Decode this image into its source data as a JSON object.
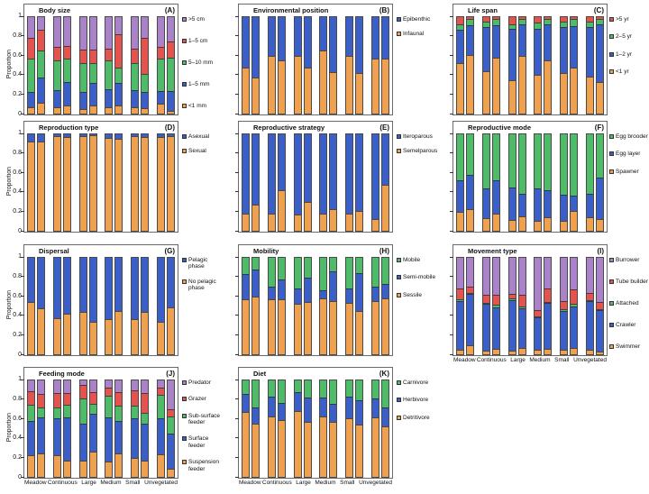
{
  "figure": {
    "ylabel": "Proportion",
    "y_ticks": [
      "0",
      "0.2",
      "0.4",
      "0.6",
      "0.8",
      "1"
    ],
    "ylim": [
      0,
      1
    ],
    "bars_per_category": 2,
    "bar_order_note": "two bars per habitat category, left to right",
    "categories": [
      "Meadow",
      "Continuous",
      "Large",
      "Medium",
      "Small",
      "Unvegetated"
    ],
    "colors": {
      "orange": "#F0A14F",
      "blue": "#3A5FC8",
      "green": "#4EBB69",
      "red": "#E4534E",
      "purple": "#A982C9"
    }
  },
  "chart_data": [
    {
      "type": "bar",
      "stacked": true,
      "letter": "(A)",
      "title": "Body size",
      "row": 0,
      "col": 0,
      "legend_top_to_bottom": [
        {
          "label": ">5 cm",
          "color": "purple"
        },
        {
          "label": "1–5 cm",
          "color": "red"
        },
        {
          "label": "5–10 mm",
          "color": "green"
        },
        {
          "label": "1–5 mm",
          "color": "blue"
        },
        {
          "label": "<1 mm",
          "color": "orange"
        }
      ],
      "segments_bottom_to_top": [
        {
          "name": "<1 mm",
          "color": "orange"
        },
        {
          "name": "1–5 mm",
          "color": "blue"
        },
        {
          "name": "5–10 mm",
          "color": "green"
        },
        {
          "name": "1–5 cm",
          "color": "red"
        },
        {
          "name": ">5 cm",
          "color": "purple"
        }
      ],
      "values": [
        [
          0.07,
          0.15,
          0.35,
          0.22,
          0.21
        ],
        [
          0.11,
          0.26,
          0.28,
          0.22,
          0.13
        ],
        [
          0.07,
          0.17,
          0.31,
          0.14,
          0.31
        ],
        [
          0.08,
          0.25,
          0.24,
          0.13,
          0.3
        ],
        [
          0.05,
          0.17,
          0.3,
          0.14,
          0.34
        ],
        [
          0.08,
          0.24,
          0.2,
          0.14,
          0.34
        ],
        [
          0.07,
          0.18,
          0.3,
          0.12,
          0.33
        ],
        [
          0.08,
          0.24,
          0.16,
          0.34,
          0.18
        ],
        [
          0.07,
          0.17,
          0.28,
          0.15,
          0.33
        ],
        [
          0.06,
          0.16,
          0.19,
          0.38,
          0.21
        ],
        [
          0.1,
          0.13,
          0.34,
          0.12,
          0.31
        ],
        [
          0.03,
          0.2,
          0.35,
          0.17,
          0.25
        ]
      ],
      "show_category_labels": false
    },
    {
      "type": "bar",
      "stacked": true,
      "letter": "(B)",
      "title": "Environmental position",
      "row": 0,
      "col": 1,
      "legend_top_to_bottom": [
        {
          "label": "Epibenthic",
          "color": "blue"
        },
        {
          "label": "Infaunal",
          "color": "orange"
        }
      ],
      "segments_bottom_to_top": [
        {
          "name": "Infaunal",
          "color": "orange"
        },
        {
          "name": "Epibenthic",
          "color": "blue"
        }
      ],
      "values": [
        [
          0.48,
          0.52
        ],
        [
          0.37,
          0.63
        ],
        [
          0.6,
          0.4
        ],
        [
          0.55,
          0.45
        ],
        [
          0.6,
          0.4
        ],
        [
          0.48,
          0.52
        ],
        [
          0.65,
          0.35
        ],
        [
          0.43,
          0.57
        ],
        [
          0.6,
          0.4
        ],
        [
          0.42,
          0.58
        ],
        [
          0.57,
          0.43
        ],
        [
          0.57,
          0.43
        ]
      ],
      "show_category_labels": false
    },
    {
      "type": "bar",
      "stacked": true,
      "letter": "(C)",
      "title": "Life span",
      "row": 0,
      "col": 2,
      "legend_top_to_bottom": [
        {
          "label": ">5 yr",
          "color": "red"
        },
        {
          "label": "2–5 yr",
          "color": "green"
        },
        {
          "label": "1–2 yr",
          "color": "blue"
        },
        {
          "label": "<1 yr",
          "color": "orange"
        }
      ],
      "segments_bottom_to_top": [
        {
          "name": "<1 yr",
          "color": "orange"
        },
        {
          "name": "1–2 yr",
          "color": "blue"
        },
        {
          "name": "2–5 yr",
          "color": "green"
        },
        {
          "name": ">5 yr",
          "color": "red"
        }
      ],
      "values": [
        [
          0.52,
          0.35,
          0.06,
          0.07
        ],
        [
          0.61,
          0.31,
          0.06,
          0.02
        ],
        [
          0.44,
          0.46,
          0.05,
          0.05
        ],
        [
          0.58,
          0.34,
          0.06,
          0.02
        ],
        [
          0.35,
          0.53,
          0.05,
          0.07
        ],
        [
          0.6,
          0.33,
          0.05,
          0.02
        ],
        [
          0.4,
          0.48,
          0.06,
          0.06
        ],
        [
          0.55,
          0.38,
          0.05,
          0.02
        ],
        [
          0.42,
          0.48,
          0.05,
          0.05
        ],
        [
          0.48,
          0.43,
          0.07,
          0.02
        ],
        [
          0.38,
          0.52,
          0.05,
          0.05
        ],
        [
          0.33,
          0.6,
          0.05,
          0.02
        ]
      ],
      "show_category_labels": false
    },
    {
      "type": "bar",
      "stacked": true,
      "letter": "(D)",
      "title": "Reproduction type",
      "row": 1,
      "col": 0,
      "legend_top_to_bottom": [
        {
          "label": "Asexual",
          "color": "blue"
        },
        {
          "label": "Sexual",
          "color": "orange"
        }
      ],
      "segments_bottom_to_top": [
        {
          "name": "Sexual",
          "color": "orange"
        },
        {
          "name": "Asexual",
          "color": "blue"
        }
      ],
      "values": [
        [
          0.93,
          0.07
        ],
        [
          0.93,
          0.07
        ],
        [
          0.98,
          0.02
        ],
        [
          0.97,
          0.03
        ],
        [
          0.98,
          0.02
        ],
        [
          0.99,
          0.01
        ],
        [
          0.96,
          0.04
        ],
        [
          0.95,
          0.05
        ],
        [
          0.98,
          0.02
        ],
        [
          0.97,
          0.03
        ],
        [
          0.97,
          0.03
        ],
        [
          0.98,
          0.02
        ]
      ],
      "show_category_labels": false
    },
    {
      "type": "bar",
      "stacked": true,
      "letter": "(E)",
      "title": "Reproductive strategy",
      "row": 1,
      "col": 1,
      "legend_top_to_bottom": [
        {
          "label": "Iteroparous",
          "color": "blue"
        },
        {
          "label": "Semelparous",
          "color": "orange"
        }
      ],
      "segments_bottom_to_top": [
        {
          "name": "Semelparous",
          "color": "orange"
        },
        {
          "name": "Iteroparous",
          "color": "blue"
        }
      ],
      "values": [
        [
          0.18,
          0.82
        ],
        [
          0.27,
          0.73
        ],
        [
          0.18,
          0.82
        ],
        [
          0.42,
          0.58
        ],
        [
          0.17,
          0.83
        ],
        [
          0.3,
          0.7
        ],
        [
          0.18,
          0.82
        ],
        [
          0.22,
          0.78
        ],
        [
          0.18,
          0.82
        ],
        [
          0.21,
          0.79
        ],
        [
          0.12,
          0.88
        ],
        [
          0.48,
          0.52
        ]
      ],
      "show_category_labels": false
    },
    {
      "type": "bar",
      "stacked": true,
      "letter": "(F)",
      "title": "Reproductive mode",
      "row": 1,
      "col": 2,
      "legend_top_to_bottom": [
        {
          "label": "Egg brooder",
          "color": "green"
        },
        {
          "label": "Egg layer",
          "color": "blue"
        },
        {
          "label": "Spawner",
          "color": "orange"
        }
      ],
      "segments_bottom_to_top": [
        {
          "name": "Spawner",
          "color": "orange"
        },
        {
          "name": "Egg layer",
          "color": "blue"
        },
        {
          "name": "Egg brooder",
          "color": "green"
        }
      ],
      "values": [
        [
          0.2,
          0.32,
          0.48
        ],
        [
          0.22,
          0.36,
          0.42
        ],
        [
          0.13,
          0.31,
          0.56
        ],
        [
          0.18,
          0.34,
          0.48
        ],
        [
          0.11,
          0.34,
          0.55
        ],
        [
          0.15,
          0.23,
          0.62
        ],
        [
          0.1,
          0.34,
          0.56
        ],
        [
          0.14,
          0.28,
          0.58
        ],
        [
          0.1,
          0.27,
          0.63
        ],
        [
          0.21,
          0.15,
          0.64
        ],
        [
          0.14,
          0.24,
          0.62
        ],
        [
          0.12,
          0.43,
          0.45
        ]
      ],
      "show_category_labels": false
    },
    {
      "type": "bar",
      "stacked": true,
      "letter": "(G)",
      "title": "Dispersal",
      "row": 2,
      "col": 0,
      "legend_top_to_bottom": [
        {
          "label": "Pelagic phase",
          "color": "blue"
        },
        {
          "label": "No pelagic phase",
          "color": "orange"
        }
      ],
      "segments_bottom_to_top": [
        {
          "name": "No pelagic phase",
          "color": "orange"
        },
        {
          "name": "Pelagic phase",
          "color": "blue"
        }
      ],
      "values": [
        [
          0.54,
          0.46
        ],
        [
          0.48,
          0.52
        ],
        [
          0.37,
          0.63
        ],
        [
          0.42,
          0.58
        ],
        [
          0.44,
          0.56
        ],
        [
          0.34,
          0.66
        ],
        [
          0.36,
          0.64
        ],
        [
          0.45,
          0.55
        ],
        [
          0.36,
          0.64
        ],
        [
          0.44,
          0.56
        ],
        [
          0.34,
          0.66
        ],
        [
          0.49,
          0.51
        ]
      ],
      "show_category_labels": false
    },
    {
      "type": "bar",
      "stacked": true,
      "letter": "(H)",
      "title": "Mobility",
      "row": 2,
      "col": 1,
      "legend_top_to_bottom": [
        {
          "label": "Mobile",
          "color": "green"
        },
        {
          "label": "Semi-mobile",
          "color": "blue"
        },
        {
          "label": "Sessile",
          "color": "orange"
        }
      ],
      "segments_bottom_to_top": [
        {
          "name": "Sessile",
          "color": "orange"
        },
        {
          "name": "Semi-mobile",
          "color": "blue"
        },
        {
          "name": "Mobile",
          "color": "green"
        }
      ],
      "values": [
        [
          0.57,
          0.26,
          0.17
        ],
        [
          0.6,
          0.28,
          0.12
        ],
        [
          0.57,
          0.13,
          0.3
        ],
        [
          0.57,
          0.21,
          0.22
        ],
        [
          0.52,
          0.16,
          0.32
        ],
        [
          0.54,
          0.25,
          0.21
        ],
        [
          0.58,
          0.08,
          0.34
        ],
        [
          0.55,
          0.31,
          0.14
        ],
        [
          0.53,
          0.15,
          0.32
        ],
        [
          0.45,
          0.39,
          0.16
        ],
        [
          0.55,
          0.15,
          0.3
        ],
        [
          0.58,
          0.15,
          0.27
        ]
      ],
      "show_category_labels": false
    },
    {
      "type": "bar",
      "stacked": true,
      "letter": "(I)",
      "title": "Movement type",
      "row": 2,
      "col": 2,
      "legend_top_to_bottom": [
        {
          "label": "Burrower",
          "color": "purple"
        },
        {
          "label": "Tube builder",
          "color": "red"
        },
        {
          "label": "Attached",
          "color": "green"
        },
        {
          "label": "Crawler",
          "color": "blue"
        },
        {
          "label": "Swimmer",
          "color": "orange"
        }
      ],
      "segments_bottom_to_top": [
        {
          "name": "Swimmer",
          "color": "orange"
        },
        {
          "name": "Crawler",
          "color": "blue"
        },
        {
          "name": "Attached",
          "color": "green"
        },
        {
          "name": "Tube builder",
          "color": "red"
        },
        {
          "name": "Burrower",
          "color": "purple"
        }
      ],
      "values": [
        [
          0.05,
          0.5,
          0.02,
          0.11,
          0.32
        ],
        [
          0.09,
          0.54,
          0.01,
          0.06,
          0.3
        ],
        [
          0.04,
          0.48,
          0.01,
          0.09,
          0.38
        ],
        [
          0.06,
          0.43,
          0.02,
          0.11,
          0.38
        ],
        [
          0.04,
          0.52,
          0.02,
          0.05,
          0.37
        ],
        [
          0.07,
          0.41,
          0.02,
          0.12,
          0.38
        ],
        [
          0.05,
          0.33,
          0.01,
          0.07,
          0.54
        ],
        [
          0.06,
          0.47,
          0.01,
          0.14,
          0.32
        ],
        [
          0.05,
          0.4,
          0.02,
          0.08,
          0.45
        ],
        [
          0.07,
          0.43,
          0.02,
          0.15,
          0.33
        ],
        [
          0.05,
          0.5,
          0.01,
          0.08,
          0.36
        ],
        [
          0.03,
          0.43,
          0.01,
          0.07,
          0.46
        ]
      ],
      "show_category_labels": true
    },
    {
      "type": "bar",
      "stacked": true,
      "letter": "(J)",
      "title": "Feeding mode",
      "row": 3,
      "col": 0,
      "legend_top_to_bottom": [
        {
          "label": "Predator",
          "color": "purple"
        },
        {
          "label": "Grazer",
          "color": "red"
        },
        {
          "label": "Sub-surface feeder",
          "color": "green"
        },
        {
          "label": "Surface feeder",
          "color": "blue"
        },
        {
          "label": "Suspension feeder",
          "color": "orange"
        }
      ],
      "segments_bottom_to_top": [
        {
          "name": "Suspension feeder",
          "color": "orange"
        },
        {
          "name": "Surface feeder",
          "color": "blue"
        },
        {
          "name": "Sub-surface feeder",
          "color": "green"
        },
        {
          "name": "Grazer",
          "color": "red"
        },
        {
          "name": "Predator",
          "color": "purple"
        }
      ],
      "values": [
        [
          0.22,
          0.36,
          0.17,
          0.14,
          0.11
        ],
        [
          0.24,
          0.38,
          0.1,
          0.14,
          0.14
        ],
        [
          0.22,
          0.39,
          0.11,
          0.15,
          0.13
        ],
        [
          0.17,
          0.45,
          0.13,
          0.12,
          0.13
        ],
        [
          0.17,
          0.38,
          0.26,
          0.14,
          0.05
        ],
        [
          0.26,
          0.39,
          0.11,
          0.12,
          0.12
        ],
        [
          0.16,
          0.46,
          0.22,
          0.09,
          0.07
        ],
        [
          0.24,
          0.34,
          0.16,
          0.14,
          0.12
        ],
        [
          0.2,
          0.41,
          0.13,
          0.16,
          0.1
        ],
        [
          0.17,
          0.38,
          0.11,
          0.21,
          0.13
        ],
        [
          0.23,
          0.38,
          0.24,
          0.08,
          0.07
        ],
        [
          0.08,
          0.37,
          0.18,
          0.07,
          0.3
        ]
      ],
      "show_category_labels": true
    },
    {
      "type": "bar",
      "stacked": true,
      "letter": "(K)",
      "title": "Diet",
      "row": 3,
      "col": 1,
      "legend_top_to_bottom": [
        {
          "label": "Carnivore",
          "color": "green"
        },
        {
          "label": "Herbivore",
          "color": "blue"
        },
        {
          "label": "Detritivore",
          "color": "orange"
        }
      ],
      "segments_bottom_to_top": [
        {
          "name": "Detritivore",
          "color": "orange"
        },
        {
          "name": "Herbivore",
          "color": "blue"
        },
        {
          "name": "Carnivore",
          "color": "green"
        }
      ],
      "values": [
        [
          0.67,
          0.19,
          0.14
        ],
        [
          0.55,
          0.17,
          0.28
        ],
        [
          0.63,
          0.2,
          0.17
        ],
        [
          0.59,
          0.18,
          0.23
        ],
        [
          0.68,
          0.2,
          0.12
        ],
        [
          0.57,
          0.25,
          0.18
        ],
        [
          0.63,
          0.19,
          0.18
        ],
        [
          0.57,
          0.19,
          0.24
        ],
        [
          0.61,
          0.22,
          0.17
        ],
        [
          0.54,
          0.25,
          0.21
        ],
        [
          0.62,
          0.19,
          0.19
        ],
        [
          0.52,
          0.2,
          0.28
        ]
      ],
      "show_category_labels": true
    }
  ]
}
